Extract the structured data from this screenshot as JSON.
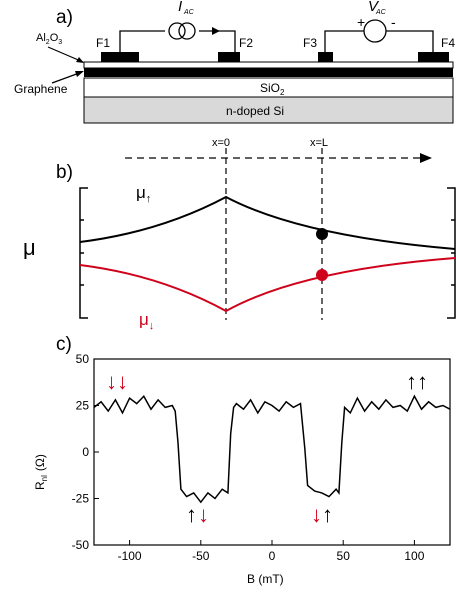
{
  "panel_a": {
    "panel_label": "a)",
    "current_source_label": "I",
    "current_source_sub": "AC",
    "voltmeter_label": "V",
    "voltmeter_sub": "AC",
    "voltmeter_plus": "+",
    "voltmeter_minus": "-",
    "contacts": [
      "F1",
      "F2",
      "F3",
      "F4"
    ],
    "al2o3_main": "Al",
    "al2o3_sub1": "2",
    "al2o3_mid": "O",
    "al2o3_sub2": "3",
    "graphene_label": "Graphene",
    "sio2_main": "SiO",
    "sio2_sub": "2",
    "substrate_label": "n-doped Si"
  },
  "panel_b": {
    "panel_label": "b)",
    "x0_label": "x=0",
    "xL_label": "x=L",
    "ylabel": "μ",
    "mu_up_main": "μ",
    "mu_up_sub": "↑",
    "mu_down_main": "μ",
    "mu_down_sub": "↓",
    "colors": {
      "up": "#000000",
      "down": "#d0021b"
    }
  },
  "panel_c": {
    "panel_label": "c)",
    "arrows_top_left": "↓↓",
    "arrows_top_right": "↑↑",
    "arrows_dip1_black": "↑",
    "arrows_dip1_red": "↓",
    "arrows_dip2_red": "↓",
    "arrows_dip2_black": "↑"
  },
  "chart_data": {
    "type": "line",
    "xlabel": "B (mT)",
    "ylabel_main": "R",
    "ylabel_sub": "nl",
    "ylabel_unit": "(Ω)",
    "xlim": [
      -125,
      125
    ],
    "ylim": [
      -50,
      50
    ],
    "xticks": [
      -100,
      -50,
      0,
      50,
      100
    ],
    "yticks": [
      50,
      25,
      0,
      -25,
      -50
    ],
    "series": [
      {
        "x": [
          -125,
          -120,
          -115,
          -110,
          -105,
          -100,
          -95,
          -90,
          -85,
          -80,
          -75,
          -70,
          -68,
          -66,
          -64,
          -60,
          -55,
          -50,
          -45,
          -40,
          -35,
          -31,
          -29,
          -27,
          -25,
          -20,
          -15,
          -10,
          -5,
          0,
          5,
          10,
          15,
          20,
          23,
          25,
          30,
          35,
          40,
          45,
          47,
          49,
          51,
          55,
          60,
          65,
          70,
          75,
          80,
          85,
          90,
          95,
          100,
          105,
          110,
          115,
          120,
          125
        ],
        "y": [
          24,
          27,
          22,
          28,
          21,
          29,
          26,
          30,
          23,
          28,
          24,
          25,
          22,
          5,
          -20,
          -24,
          -22,
          -27,
          -22,
          -25,
          -20,
          -22,
          10,
          24,
          26,
          23,
          28,
          21,
          27,
          25,
          22,
          27,
          24,
          26,
          2,
          -18,
          -21,
          -22,
          -24,
          -20,
          -22,
          5,
          24,
          21,
          29,
          22,
          27,
          23,
          28,
          24,
          25,
          22,
          30,
          23,
          27,
          24,
          25,
          23
        ]
      }
    ]
  }
}
